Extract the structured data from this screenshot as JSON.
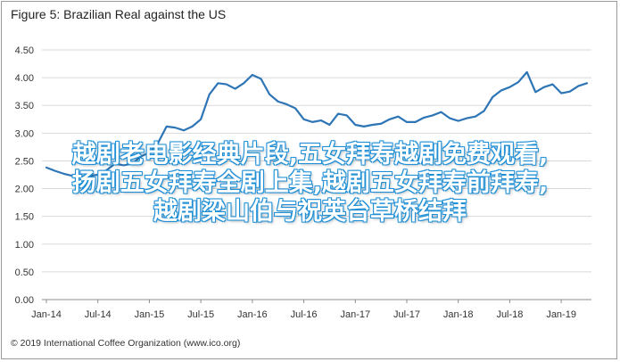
{
  "figure_title": "Figure 5: Brazilian Real against the US",
  "footer": "© 2019 International Coffee Organization (www.ico.org)",
  "overlay_lines": [
    "越剧老电影经典片段,五女拜寿越剧免费观看,",
    "扬剧五女拜寿全剧上集,越剧五女拜寿前拜寿,",
    "越剧梁山伯与祝英台草桥结拜"
  ],
  "colors": {
    "line": "#2e75b6",
    "grid": "#d9d9d9",
    "overlay_text": "#ffffff",
    "overlay_outline": "#1f8fd6"
  },
  "chart_data": {
    "type": "line",
    "title": "Figure 5: Brazilian Real against the US",
    "xlabel": "",
    "ylabel": "",
    "ylim": [
      0,
      4.5
    ],
    "yticks": [
      "0.00",
      "0.50",
      "1.00",
      "1.50",
      "2.00",
      "2.50",
      "3.00",
      "3.50",
      "4.00",
      "4.50"
    ],
    "xtick_labels": [
      "Jan-14",
      "Jul-14",
      "Jan-15",
      "Jul-15",
      "Jan-16",
      "Jul-16",
      "Jan-17",
      "Jul-17",
      "Jan-18",
      "Jul-18",
      "Jan-19"
    ],
    "grid": "horizontal",
    "series": [
      {
        "values": [
          2.38,
          2.32,
          2.27,
          2.23,
          2.22,
          2.23,
          2.25,
          2.33,
          2.45,
          2.42,
          2.45,
          2.58,
          2.65,
          2.82,
          3.12,
          3.1,
          3.05,
          3.12,
          3.25,
          3.7,
          3.9,
          3.88,
          3.8,
          3.9,
          4.05,
          3.98,
          3.7,
          3.57,
          3.52,
          3.45,
          3.25,
          3.2,
          3.23,
          3.15,
          3.35,
          3.32,
          3.15,
          3.12,
          3.15,
          3.17,
          3.25,
          3.3,
          3.2,
          3.2,
          3.28,
          3.32,
          3.38,
          3.27,
          3.22,
          3.27,
          3.3,
          3.4,
          3.65,
          3.77,
          3.83,
          3.92,
          4.1,
          3.74,
          3.83,
          3.88,
          3.72,
          3.75,
          3.85,
          3.9
        ]
      }
    ]
  }
}
